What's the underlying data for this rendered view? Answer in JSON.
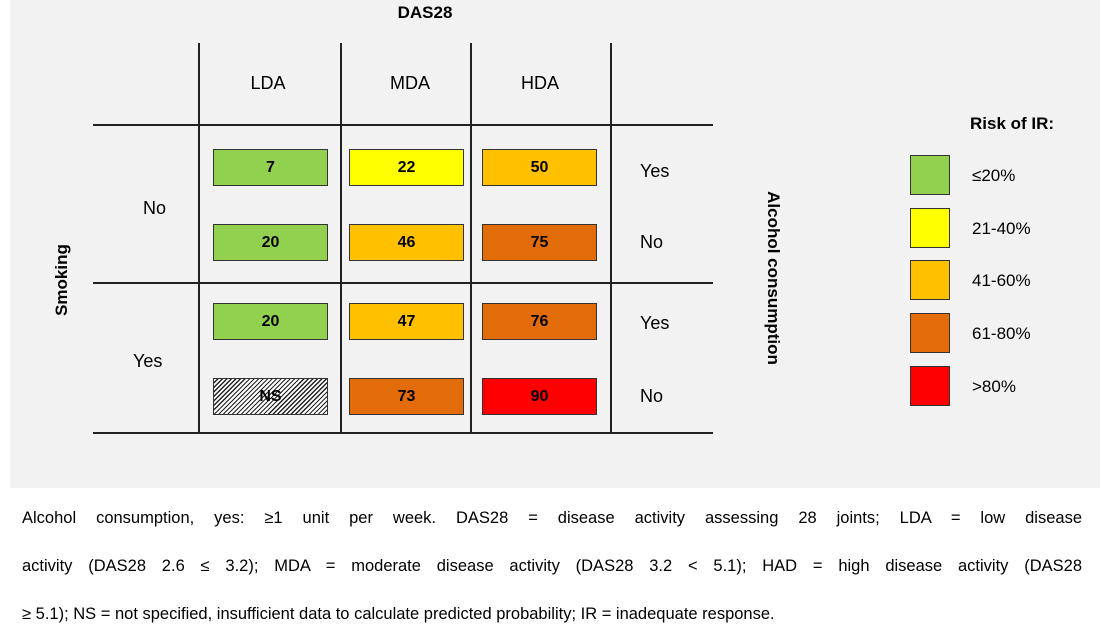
{
  "title": "DAS28",
  "columns": [
    "LDA",
    "MDA",
    "HDA"
  ],
  "smoking_label": "Smoking",
  "alcohol_label": "Alcohol consumption",
  "rows": [
    {
      "smoking": "No",
      "alcohol": "Yes",
      "cells": [
        {
          "value": "7",
          "color": "#92d050"
        },
        {
          "value": "22",
          "color": "#ffff00"
        },
        {
          "value": "50",
          "color": "#ffc000"
        }
      ]
    },
    {
      "smoking": "No",
      "alcohol": "No",
      "cells": [
        {
          "value": "20",
          "color": "#92d050"
        },
        {
          "value": "46",
          "color": "#ffc000"
        },
        {
          "value": "75",
          "color": "#e26b0a"
        }
      ]
    },
    {
      "smoking": "Yes",
      "alcohol": "Yes",
      "cells": [
        {
          "value": "20",
          "color": "#92d050"
        },
        {
          "value": "47",
          "color": "#ffc000"
        },
        {
          "value": "76",
          "color": "#e26b0a"
        }
      ]
    },
    {
      "smoking": "Yes",
      "alcohol": "No",
      "cells": [
        {
          "value": "NS",
          "color": "hatched"
        },
        {
          "value": "73",
          "color": "#e26b0a"
        },
        {
          "value": "90",
          "color": "#ff0000"
        }
      ]
    }
  ],
  "smoking_groups": [
    "No",
    "Yes"
  ],
  "legend": {
    "title": "Risk of IR:",
    "items": [
      {
        "label": "≤20%",
        "color": "#92d050"
      },
      {
        "label": "21-40%",
        "color": "#ffff00"
      },
      {
        "label": "41-60%",
        "color": "#ffc000"
      },
      {
        "label": "61-80%",
        "color": "#e26b0a"
      },
      {
        "label": ">80%",
        "color": "#ff0000"
      }
    ]
  },
  "caption": {
    "line1": "Alcohol consumption, yes: ≥1 unit per week. DAS28 = disease activity assessing 28 joints; LDA = low disease",
    "line2": "activity (DAS28 2.6 ≤ 3.2); MDA = moderate disease activity (DAS28 3.2 < 5.1); HAD = high disease activity (DAS28",
    "line3": "≥ 5.1); NS = not specified, insufficient data to calculate predicted probability; IR = inadequate response."
  }
}
